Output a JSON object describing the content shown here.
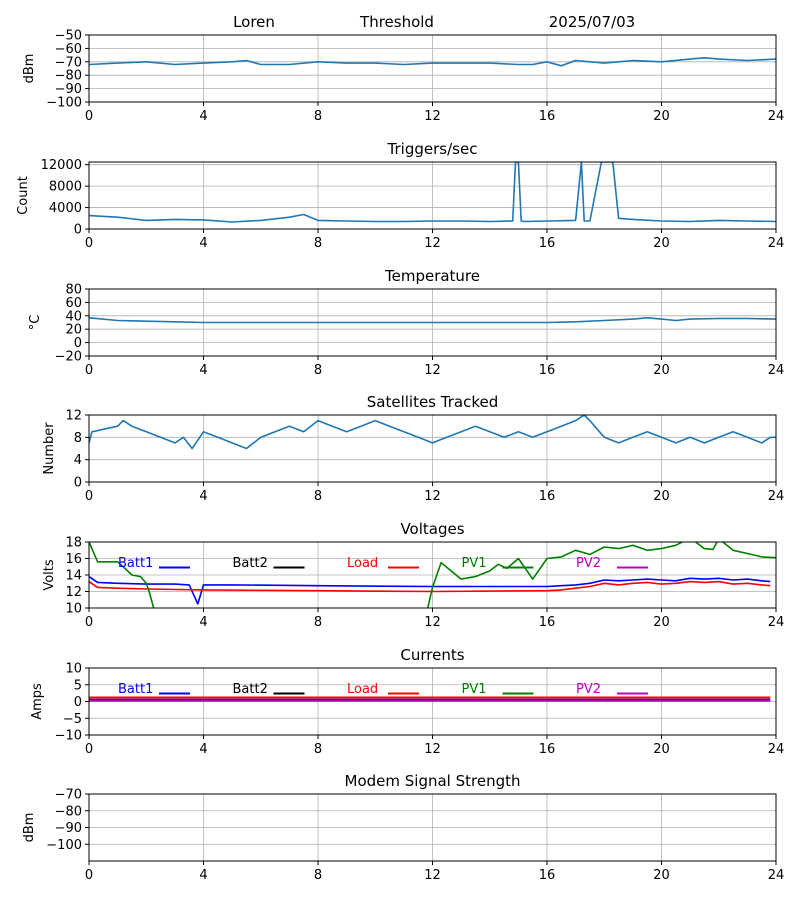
{
  "header": {
    "station": "Loren",
    "mode": "Threshold",
    "date": "2025/07/03"
  },
  "colors": {
    "default": "#1f77b4",
    "Batt1": "#0000ff",
    "Batt2": "#000000",
    "Load": "#ff0000",
    "PV1": "#008000",
    "PV2": "#c000c0"
  },
  "chart_data": [
    {
      "id": "threshold",
      "type": "line",
      "title": "",
      "xlabel": "",
      "ylabel": "dBm",
      "xlim": [
        0,
        24
      ],
      "xticks": [
        0,
        4,
        8,
        12,
        16,
        20,
        24
      ],
      "ylim": [
        -100,
        -50
      ],
      "yticks": [
        -100,
        -90,
        -80,
        -70,
        -60,
        -50
      ],
      "grid": true,
      "series": [
        {
          "color": "#1f77b4",
          "x": [
            0,
            1,
            2,
            3,
            4,
            5,
            5.5,
            6,
            7,
            8,
            9,
            10,
            11,
            12,
            13,
            14,
            15,
            15.5,
            16,
            16.5,
            17,
            17.5,
            18,
            18.5,
            19,
            20,
            21,
            21.5,
            22,
            23,
            24
          ],
          "y": [
            -72,
            -71,
            -70,
            -72,
            -71,
            -70,
            -69,
            -72,
            -72,
            -70,
            -71,
            -71,
            -72,
            -71,
            -71,
            -71,
            -72,
            -72,
            -70,
            -73,
            -69,
            -70,
            -71,
            -70,
            -69,
            -70,
            -68,
            -67,
            -68,
            -69,
            -68
          ]
        }
      ]
    },
    {
      "id": "triggers",
      "type": "line",
      "title": "Triggers/sec",
      "xlabel": "",
      "ylabel": "Count",
      "xlim": [
        0,
        24
      ],
      "xticks": [
        0,
        4,
        8,
        12,
        16,
        20,
        24
      ],
      "ylim": [
        0,
        12500
      ],
      "yticks": [
        0,
        4000,
        8000,
        12000
      ],
      "grid": true,
      "series": [
        {
          "color": "#1f77b4",
          "x": [
            0,
            1,
            2,
            3,
            4,
            5,
            6,
            7,
            7.5,
            8,
            9,
            10,
            11,
            12,
            13,
            14,
            14.8,
            14.9,
            15,
            15.1,
            15.2,
            16,
            17,
            17.1,
            17.2,
            17.3,
            17.5,
            17.9,
            18.0,
            18.3,
            18.5,
            19,
            20,
            21,
            22,
            23,
            24
          ],
          "y": [
            2500,
            2200,
            1600,
            1800,
            1700,
            1300,
            1600,
            2200,
            2700,
            1600,
            1500,
            1400,
            1400,
            1500,
            1500,
            1400,
            1500,
            12500,
            12500,
            1500,
            1400,
            1500,
            1600,
            7000,
            12500,
            1500,
            1500,
            12500,
            12500,
            12500,
            2000,
            1800,
            1500,
            1400,
            1600,
            1500,
            1400
          ]
        }
      ]
    },
    {
      "id": "temperature",
      "type": "line",
      "title": "Temperature",
      "xlabel": "",
      "ylabel": "°C",
      "xlim": [
        0,
        24
      ],
      "xticks": [
        0,
        4,
        8,
        12,
        16,
        20,
        24
      ],
      "ylim": [
        -20,
        80
      ],
      "yticks": [
        -20,
        0,
        20,
        40,
        60,
        80
      ],
      "grid": true,
      "series": [
        {
          "color": "#1f77b4",
          "x": [
            0,
            1,
            2,
            3,
            4,
            6,
            8,
            10,
            12,
            14,
            16,
            17,
            18,
            19,
            19.5,
            20,
            20.5,
            21,
            22,
            23,
            24
          ],
          "y": [
            37,
            33,
            32,
            31,
            30,
            30,
            30,
            30,
            30,
            30,
            30,
            31,
            33,
            35,
            37,
            35,
            33,
            35,
            36,
            36,
            35
          ]
        }
      ]
    },
    {
      "id": "satellites",
      "type": "line",
      "title": "Satellites Tracked",
      "xlabel": "",
      "ylabel": "Number",
      "xlim": [
        0,
        24
      ],
      "xticks": [
        0,
        4,
        8,
        12,
        16,
        20,
        24
      ],
      "ylim": [
        0,
        12
      ],
      "yticks": [
        0,
        4,
        8,
        12
      ],
      "grid": true,
      "series": [
        {
          "color": "#1f77b4",
          "x": [
            0,
            0.1,
            1,
            1.2,
            1.5,
            2,
            2.5,
            3,
            3.3,
            3.6,
            4,
            4.5,
            5,
            5.5,
            6,
            6.5,
            7,
            7.5,
            8,
            8.5,
            9,
            9.5,
            10,
            10.5,
            11,
            11.5,
            12,
            12.5,
            13,
            13.5,
            14,
            14.5,
            15,
            15.5,
            16,
            16.5,
            17,
            17.3,
            17.5,
            18,
            18.5,
            19,
            19.5,
            20,
            20.5,
            21,
            21.5,
            22,
            22.5,
            23,
            23.5,
            23.8,
            24
          ],
          "y": [
            7,
            9,
            10,
            11,
            10,
            9,
            8,
            7,
            8,
            6,
            9,
            8,
            7,
            6,
            8,
            9,
            10,
            9,
            11,
            10,
            9,
            10,
            11,
            10,
            9,
            8,
            7,
            8,
            9,
            10,
            9,
            8,
            9,
            8,
            9,
            10,
            11,
            12,
            11,
            8,
            7,
            8,
            9,
            8,
            7,
            8,
            7,
            8,
            9,
            8,
            7,
            8,
            8
          ]
        }
      ]
    },
    {
      "id": "voltages",
      "type": "line",
      "title": "Voltages",
      "xlabel": "",
      "ylabel": "Volts",
      "xlim": [
        0,
        24
      ],
      "xticks": [
        0,
        4,
        8,
        12,
        16,
        20,
        24
      ],
      "ylim": [
        10,
        18
      ],
      "yticks": [
        10,
        12,
        14,
        16,
        18
      ],
      "grid": true,
      "legend": [
        "Batt1",
        "Batt2",
        "Load",
        "PV1",
        "PV2"
      ],
      "series": [
        {
          "name": "Batt1",
          "color": "#0000ff",
          "x": [
            0,
            0.3,
            1,
            2,
            3,
            3.5,
            3.8,
            4.0,
            5,
            8,
            12,
            16,
            16.5,
            17,
            17.5,
            18,
            18.5,
            19,
            19.5,
            20,
            20.5,
            21,
            21.5,
            22,
            22.5,
            23,
            23.5,
            23.8
          ],
          "y": [
            13.8,
            13.1,
            13.0,
            12.9,
            12.9,
            12.8,
            10.5,
            12.8,
            12.8,
            12.7,
            12.6,
            12.6,
            12.7,
            12.8,
            13.0,
            13.4,
            13.3,
            13.4,
            13.5,
            13.4,
            13.3,
            13.6,
            13.5,
            13.6,
            13.4,
            13.5,
            13.3,
            13.2
          ]
        },
        {
          "name": "Load",
          "color": "#ff0000",
          "x": [
            0,
            0.3,
            1,
            2,
            4,
            8,
            12,
            16,
            16.5,
            17,
            17.5,
            18,
            18.5,
            19,
            19.5,
            20,
            20.5,
            21,
            21.5,
            22,
            22.5,
            23,
            23.5,
            23.8
          ],
          "y": [
            13.2,
            12.5,
            12.4,
            12.3,
            12.2,
            12.1,
            12.0,
            12.1,
            12.2,
            12.4,
            12.6,
            13.0,
            12.8,
            13.0,
            13.1,
            12.9,
            13.0,
            13.2,
            13.1,
            13.2,
            12.9,
            13.0,
            12.8,
            12.7
          ]
        },
        {
          "name": "PV1",
          "color": "#008000",
          "x": [
            0,
            0.3,
            1,
            1.2,
            1.5,
            1.8,
            2.0,
            2.1,
            2.3,
            11.8,
            12.0,
            12.3,
            13,
            13.5,
            14,
            14.3,
            14.6,
            15,
            15.5,
            15.7,
            16,
            16.5,
            17,
            17.5,
            18,
            18.5,
            19,
            19.5,
            20,
            20.5,
            21,
            21.5,
            21.8,
            22,
            22.5,
            23,
            23.5,
            24
          ],
          "y": [
            18,
            15.6,
            15.6,
            15.0,
            14.0,
            13.8,
            13.0,
            12.0,
            9.5,
            9.5,
            12.5,
            15.5,
            13.5,
            13.8,
            14.5,
            15.3,
            14.8,
            16.0,
            13.5,
            14.5,
            16.0,
            16.2,
            17.0,
            16.5,
            17.4,
            17.2,
            17.6,
            17.0,
            17.2,
            17.6,
            18.5,
            17.2,
            17.1,
            18.4,
            17.0,
            16.6,
            16.2,
            16.1
          ]
        }
      ]
    },
    {
      "id": "currents",
      "type": "line",
      "title": "Currents",
      "xlabel": "",
      "ylabel": "Amps",
      "xlim": [
        0,
        24
      ],
      "xticks": [
        0,
        4,
        8,
        12,
        16,
        20,
        24
      ],
      "ylim": [
        -10,
        10
      ],
      "yticks": [
        -10,
        -5,
        0,
        5,
        10
      ],
      "grid": true,
      "legend": [
        "Batt1",
        "Batt2",
        "Load",
        "PV1",
        "PV2"
      ],
      "series": [
        {
          "name": "Batt1",
          "color": "#0000ff",
          "x": [
            0,
            23.8
          ],
          "y": [
            0.5,
            0.5
          ]
        },
        {
          "name": "Load",
          "color": "#ff0000",
          "x": [
            0,
            23.8
          ],
          "y": [
            1.2,
            1.2
          ]
        },
        {
          "name": "PV2",
          "color": "#c000c0",
          "x": [
            0,
            23.8
          ],
          "y": [
            0.2,
            0.2
          ]
        }
      ]
    },
    {
      "id": "modem",
      "type": "line",
      "title": "Modem Signal Strength",
      "xlabel": "",
      "ylabel": "dBm",
      "xlim": [
        0,
        24
      ],
      "xticks": [
        0,
        4,
        8,
        12,
        16,
        20,
        24
      ],
      "ylim": [
        -110,
        -70
      ],
      "yticks": [
        -100,
        -90,
        -80,
        -70
      ],
      "grid": true,
      "series": []
    }
  ]
}
